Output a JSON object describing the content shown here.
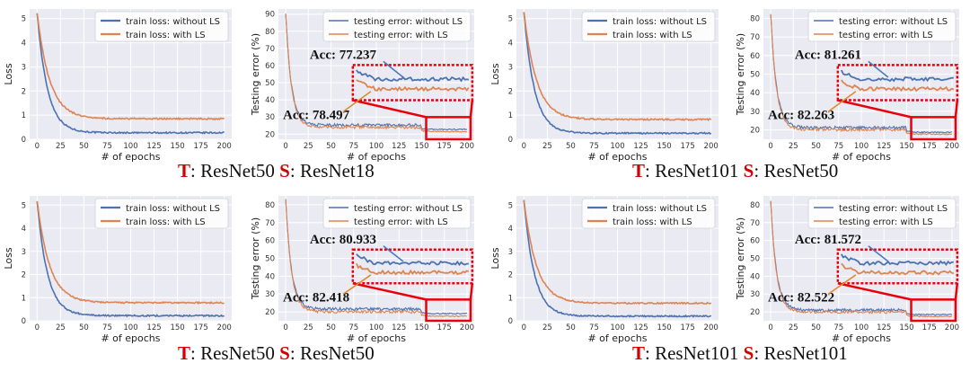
{
  "colors": {
    "blue": "#4c72b0",
    "orange": "#dd8452",
    "red": "#e8000b",
    "panel_bg": "#eaeaf2",
    "grid": "#ffffff",
    "annot": "#111111",
    "arrow_blue": "#4a79c4",
    "arrow_orange": "#e08a2e"
  },
  "captions": [
    {
      "t": "T",
      "t_text": ": ResNet50 ",
      "s": "S",
      "s_text": ": ResNet18"
    },
    {
      "t": "T",
      "t_text": ": ResNet101 ",
      "s": "S",
      "s_text": ": ResNet50"
    },
    {
      "t": "T",
      "t_text": ": ResNet50 ",
      "s": "S",
      "s_text": ": ResNet50"
    },
    {
      "t": "T",
      "t_text": ": ResNet101 ",
      "s": "S",
      "s_text": ": ResNet101"
    }
  ],
  "chart_data": [
    {
      "type": "line",
      "kind": "loss",
      "xlabel": "# of epochs",
      "ylabel": "Loss",
      "xlim": [
        -8,
        208
      ],
      "ylim": [
        0,
        5.4
      ],
      "xticks": [
        0,
        25,
        50,
        75,
        100,
        125,
        150,
        175,
        200
      ],
      "yticks": [
        0,
        1,
        2,
        3,
        4,
        5
      ],
      "legend_position": "top-right",
      "grid": true,
      "series": [
        {
          "name": "train loss: without LS",
          "color": "blue",
          "start": 5.25,
          "final": 0.27,
          "k": 0.09
        },
        {
          "name": "train loss: with LS",
          "color": "orange",
          "start": 5.25,
          "final": 0.85,
          "k": 0.075
        }
      ]
    },
    {
      "type": "line",
      "kind": "error",
      "xlabel": "# of epochs",
      "ylabel": "Testing error (%)",
      "xlim": [
        -8,
        208
      ],
      "ylim": [
        17,
        93
      ],
      "xticks": [
        0,
        25,
        50,
        75,
        100,
        125,
        150,
        175,
        200
      ],
      "yticks": [
        20,
        30,
        40,
        50,
        60,
        70,
        80,
        90
      ],
      "legend_position": "top-right",
      "grid": true,
      "series": [
        {
          "name": "testing error: without LS",
          "color": "blue",
          "start": 91,
          "final": 22.763
        },
        {
          "name": "testing error: with LS",
          "color": "orange",
          "start": 91,
          "final": 21.503
        }
      ],
      "annotations": [
        {
          "text": "Acc: 77.237"
        },
        {
          "text": "Acc: 78.497"
        }
      ]
    },
    {
      "type": "line",
      "kind": "loss",
      "xlabel": "# of epochs",
      "ylabel": "Loss",
      "xlim": [
        -8,
        208
      ],
      "ylim": [
        0,
        5.4
      ],
      "xticks": [
        0,
        25,
        50,
        75,
        100,
        125,
        150,
        175,
        200
      ],
      "yticks": [
        0,
        1,
        2,
        3,
        4,
        5
      ],
      "legend_position": "top-right",
      "grid": true,
      "series": [
        {
          "name": "train loss: without LS",
          "color": "blue",
          "start": 5.3,
          "final": 0.25,
          "k": 0.09
        },
        {
          "name": "train loss: with LS",
          "color": "orange",
          "start": 5.3,
          "final": 0.82,
          "k": 0.075
        }
      ]
    },
    {
      "type": "line",
      "kind": "error",
      "xlabel": "# of epochs",
      "ylabel": "Testing error (%)",
      "xlim": [
        -8,
        208
      ],
      "ylim": [
        15,
        85
      ],
      "xticks": [
        0,
        25,
        50,
        75,
        100,
        125,
        150,
        175,
        200
      ],
      "yticks": [
        20,
        30,
        40,
        50,
        60,
        70,
        80
      ],
      "legend_position": "top-right",
      "grid": true,
      "series": [
        {
          "name": "testing error: without LS",
          "color": "blue",
          "start": 83,
          "final": 18.739
        },
        {
          "name": "testing error: with LS",
          "color": "orange",
          "start": 83,
          "final": 17.737
        }
      ],
      "annotations": [
        {
          "text": "Acc: 81.261"
        },
        {
          "text": "Acc: 82.263"
        }
      ]
    },
    {
      "type": "line",
      "kind": "loss",
      "xlabel": "# of epochs",
      "ylabel": "Loss",
      "xlim": [
        -8,
        208
      ],
      "ylim": [
        0,
        5.4
      ],
      "xticks": [
        0,
        25,
        50,
        75,
        100,
        125,
        150,
        175,
        200
      ],
      "yticks": [
        0,
        1,
        2,
        3,
        4,
        5
      ],
      "legend_position": "top-right",
      "grid": true,
      "series": [
        {
          "name": "train loss: without LS",
          "color": "blue",
          "start": 5.2,
          "final": 0.22,
          "k": 0.09
        },
        {
          "name": "train loss: with LS",
          "color": "orange",
          "start": 5.2,
          "final": 0.78,
          "k": 0.075
        }
      ]
    },
    {
      "type": "line",
      "kind": "error",
      "xlabel": "# of epochs",
      "ylabel": "Testing error (%)",
      "xlim": [
        -8,
        208
      ],
      "ylim": [
        15,
        85
      ],
      "xticks": [
        0,
        25,
        50,
        75,
        100,
        125,
        150,
        175,
        200
      ],
      "yticks": [
        20,
        30,
        40,
        50,
        60,
        70,
        80
      ],
      "legend_position": "top-right",
      "grid": true,
      "series": [
        {
          "name": "testing error: without LS",
          "color": "blue",
          "start": 84,
          "final": 19.067
        },
        {
          "name": "testing error: with LS",
          "color": "orange",
          "start": 84,
          "final": 17.582
        }
      ],
      "annotations": [
        {
          "text": "Acc: 80.933"
        },
        {
          "text": "Acc: 82.418"
        }
      ]
    },
    {
      "type": "line",
      "kind": "loss",
      "xlabel": "# of epochs",
      "ylabel": "Loss",
      "xlim": [
        -8,
        208
      ],
      "ylim": [
        0,
        5.4
      ],
      "xticks": [
        0,
        25,
        50,
        75,
        100,
        125,
        150,
        175,
        200
      ],
      "yticks": [
        0,
        1,
        2,
        3,
        4,
        5
      ],
      "legend_position": "top-right",
      "grid": true,
      "series": [
        {
          "name": "train loss: without LS",
          "color": "blue",
          "start": 5.25,
          "final": 0.2,
          "k": 0.09
        },
        {
          "name": "train loss: with LS",
          "color": "orange",
          "start": 5.25,
          "final": 0.76,
          "k": 0.075
        }
      ]
    },
    {
      "type": "line",
      "kind": "error",
      "xlabel": "# of epochs",
      "ylabel": "Testing error (%)",
      "xlim": [
        -8,
        208
      ],
      "ylim": [
        15,
        85
      ],
      "xticks": [
        0,
        25,
        50,
        75,
        100,
        125,
        150,
        175,
        200
      ],
      "yticks": [
        20,
        30,
        40,
        50,
        60,
        70,
        80
      ],
      "legend_position": "top-right",
      "grid": true,
      "series": [
        {
          "name": "testing error: without LS",
          "color": "blue",
          "start": 83,
          "final": 18.428
        },
        {
          "name": "testing error: with LS",
          "color": "orange",
          "start": 83,
          "final": 17.478
        }
      ],
      "annotations": [
        {
          "text": "Acc: 81.572"
        },
        {
          "text": "Acc: 82.522"
        }
      ]
    }
  ]
}
